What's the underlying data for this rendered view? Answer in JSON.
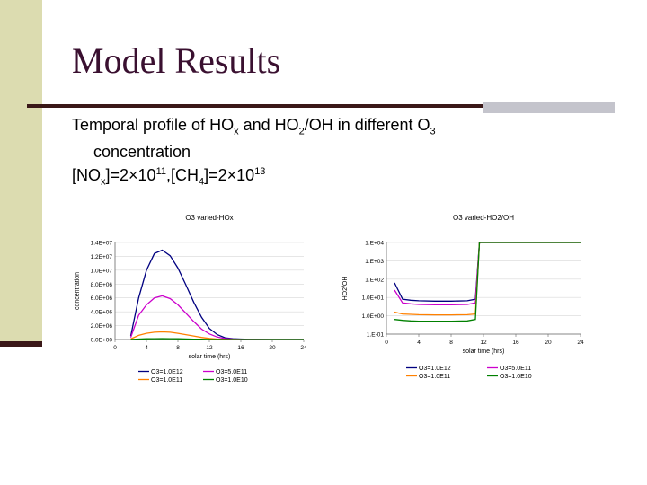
{
  "slide": {
    "title": "Model Results",
    "subtitle_line1_a": "Temporal profile of HO",
    "subtitle_line1_sub1": "x",
    "subtitle_line1_b": " and HO",
    "subtitle_line1_sub2": "2",
    "subtitle_line1_c": "/OH in different O",
    "subtitle_line1_sub3": "3",
    "subtitle_line2": "concentration",
    "subtitle_line3_a": "[NO",
    "subtitle_line3_sub": "x",
    "subtitle_line3_b": "]=2×10",
    "subtitle_line3_sup1": "11",
    "subtitle_line3_c": ",[CH",
    "subtitle_line3_sub2": "4",
    "subtitle_line3_d": "]=2×10",
    "subtitle_line3_sup2": "13"
  },
  "colors": {
    "accent_dark": "#3a1818",
    "sidebar": "#dcdcb0",
    "o3_1e12": "#000080",
    "o3_5e11": "#cc00cc",
    "o3_1e11": "#ff8000",
    "o3_1e10": "#008000"
  },
  "chart_data": [
    {
      "type": "line",
      "title": "O3 varied-HOx",
      "xlabel": "solar time (hrs)",
      "ylabel": "concentration",
      "xlim": [
        0,
        24
      ],
      "ylim": [
        0,
        14000000
      ],
      "x_ticks": [
        "0",
        "4",
        "8",
        "12",
        "16",
        "20",
        "24"
      ],
      "y_ticks": [
        "0.0E+00",
        "2.0E+06",
        "4.0E+06",
        "6.0E+06",
        "8.0E+06",
        "1.0E+07",
        "1.2E+07",
        "1.4E+07"
      ],
      "legend_position": "bottom",
      "x": [
        2,
        3,
        4,
        5,
        6,
        7,
        8,
        9,
        10,
        11,
        12,
        13,
        14,
        15,
        16,
        17,
        18,
        20,
        22,
        24
      ],
      "series": [
        {
          "name": "O3=1.0E12",
          "color": "#000080",
          "values": [
            500000,
            6000000,
            10000000,
            12400000,
            12900000,
            12100000,
            10300000,
            7900000,
            5400000,
            3200000,
            1600000,
            700000,
            250000,
            120000,
            60000,
            30000,
            20000,
            10000,
            10000,
            10000
          ]
        },
        {
          "name": "O3=5.0E11",
          "color": "#cc00cc",
          "values": [
            300000,
            3500000,
            5000000,
            6000000,
            6300000,
            5900000,
            5000000,
            3800000,
            2600000,
            1500000,
            800000,
            350000,
            130000,
            60000,
            30000,
            15000,
            10000,
            5000,
            5000,
            5000
          ]
        },
        {
          "name": "O3=1.0E11",
          "color": "#ff8000",
          "values": [
            80000,
            600000,
            900000,
            1050000,
            1100000,
            1050000,
            900000,
            700000,
            500000,
            300000,
            150000,
            60000,
            20000,
            10000,
            5000,
            3000,
            2000,
            1000,
            1000,
            1000
          ]
        },
        {
          "name": "O3=1.0E10",
          "color": "#008000",
          "values": [
            10000,
            70000,
            100000,
            120000,
            130000,
            120000,
            100000,
            80000,
            55000,
            35000,
            18000,
            8000,
            3000,
            1500,
            800,
            500,
            300,
            200,
            200,
            200
          ]
        }
      ]
    },
    {
      "type": "line",
      "title": "O3 varied-HO2/OH",
      "xlabel": "solar time (hrs)",
      "ylabel": "HO2/OH",
      "xlim": [
        0,
        24
      ],
      "ylim": [
        -1,
        4
      ],
      "log_scale": true,
      "x_ticks": [
        "0",
        "4",
        "8",
        "12",
        "16",
        "20",
        "24"
      ],
      "y_ticks": [
        "1.E-01",
        "1.0E+00",
        "1.0E+01",
        "1.E+02",
        "1.E+03",
        "1.E+04"
      ],
      "legend_position": "bottom",
      "x": [
        1,
        2,
        3,
        4,
        6,
        8,
        10,
        11,
        11.5,
        12,
        14,
        16,
        20,
        24
      ],
      "series": [
        {
          "name": "O3=1.0E12",
          "color": "#000080",
          "values": [
            1.8,
            0.9,
            0.85,
            0.82,
            0.8,
            0.8,
            0.82,
            0.9,
            4.0,
            4.0,
            4.0,
            4.0,
            4.0,
            4.0
          ]
        },
        {
          "name": "O3=5.0E11",
          "color": "#cc00cc",
          "values": [
            1.4,
            0.7,
            0.65,
            0.62,
            0.6,
            0.6,
            0.62,
            0.7,
            4.0,
            4.0,
            4.0,
            4.0,
            4.0,
            4.0
          ]
        },
        {
          "name": "O3=1.0E11",
          "color": "#ff8000",
          "values": [
            0.2,
            0.1,
            0.08,
            0.06,
            0.05,
            0.05,
            0.06,
            0.1,
            4.0,
            4.0,
            4.0,
            4.0,
            4.0,
            4.0
          ]
        },
        {
          "name": "O3=1.0E10",
          "color": "#008000",
          "values": [
            -0.2,
            -0.25,
            -0.28,
            -0.3,
            -0.3,
            -0.3,
            -0.28,
            -0.2,
            4.0,
            4.0,
            4.0,
            4.0,
            4.0,
            4.0
          ]
        }
      ]
    }
  ]
}
